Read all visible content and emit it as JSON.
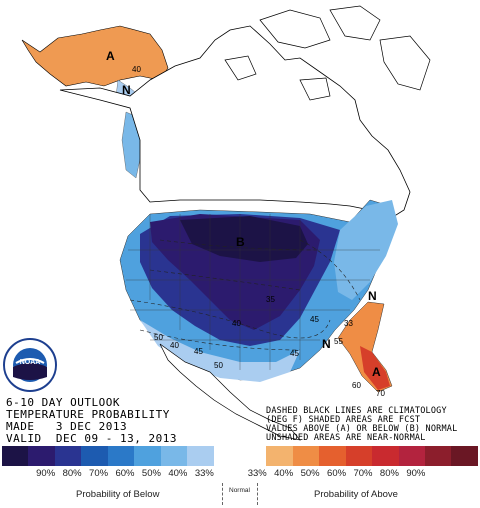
{
  "map": {
    "title_lines": [
      "6-10 DAY OUTLOOK",
      "TEMPERATURE PROBABILITY",
      "MADE   3 DEC 2013",
      "VALID  DEC 09 - 13, 2013"
    ],
    "note_lines": [
      "DASHED BLACK LINES ARE CLIMATOLOGY",
      "(DEG F) SHADED AREAS ARE FCST",
      "VALUES ABOVE (A) OR BELOW (B) NORMAL",
      "UNSHADED AREAS ARE NEAR-NORMAL"
    ],
    "region_letters": [
      "A",
      "N",
      "B",
      "N",
      "N",
      "A"
    ],
    "contour_labels": [
      "40",
      "50",
      "50",
      "40",
      "45",
      "40",
      "35",
      "60",
      "70",
      "45",
      "55",
      "45",
      "33"
    ],
    "logo_text": "NOAA"
  },
  "legend": {
    "colors": [
      "#1c1346",
      "#2c1b6e",
      "#2a3491",
      "#1d5bb0",
      "#2b79c8",
      "#4fa1de",
      "#79b8e8",
      "#aacdf0",
      "#ffffff",
      "#ffffff",
      "#f3b36e",
      "#ef8d45",
      "#e5602e",
      "#d63f2a",
      "#c92a2f",
      "#b3233e",
      "#8c1e2c",
      "#6a1724"
    ],
    "ticks": [
      "90%",
      "80%",
      "70%",
      "60%",
      "50%",
      "40%",
      "33%",
      "33%",
      "40%",
      "50%",
      "60%",
      "70%",
      "80%",
      "90%"
    ],
    "below_label": "Probability of Below",
    "normal_label": "Normal",
    "above_label": "Probability of Above"
  }
}
